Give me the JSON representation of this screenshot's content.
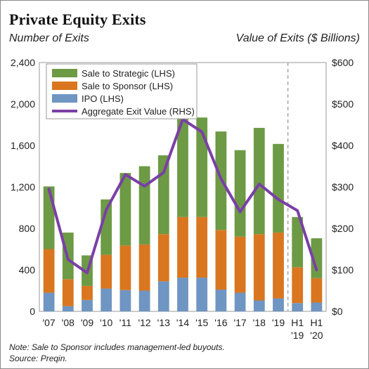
{
  "chart_data": {
    "type": "bar",
    "title": "Private Equity Exits",
    "ylabel_left": "Number of Exits",
    "ylabel_right": "Value of Exits ($ Billions)",
    "categories": [
      "'07",
      "'08",
      "'09",
      "'10",
      "'11",
      "'12",
      "'13",
      "'14",
      "'15",
      "'16",
      "'17",
      "'18",
      "'19",
      "H1\n'19",
      "H1\n'20"
    ],
    "stacked": true,
    "ylim_left": [
      0,
      2400
    ],
    "yticks_left": [
      "0",
      "400",
      "800",
      "1,200",
      "1,600",
      "2,000",
      "2,400"
    ],
    "ylim_right": [
      0,
      600
    ],
    "yticks_right": [
      "$0",
      "$100",
      "$200",
      "$300",
      "$400",
      "$500",
      "$600"
    ],
    "series": [
      {
        "name": "IPO (LHS)",
        "color": "#6f95c2",
        "axis": "left",
        "values": [
          180,
          50,
          110,
          220,
          205,
          200,
          290,
          325,
          325,
          210,
          180,
          105,
          125,
          80,
          85
        ]
      },
      {
        "name": "Sale to Sponsor (LHS)",
        "color": "#d9761f",
        "axis": "left",
        "values": [
          420,
          260,
          135,
          325,
          430,
          445,
          455,
          585,
          585,
          575,
          540,
          640,
          635,
          345,
          235
        ]
      },
      {
        "name": "Sale to Strategic (LHS)",
        "color": "#6d9a45",
        "axis": "left",
        "values": [
          605,
          450,
          295,
          535,
          700,
          755,
          760,
          960,
          960,
          950,
          835,
          1025,
          855,
          485,
          385
        ]
      }
    ],
    "line": {
      "name": "Aggregate Exit Value (RHS)",
      "color": "#7b3fa6",
      "axis": "right",
      "values": [
        295,
        125,
        93,
        245,
        330,
        302,
        335,
        463,
        433,
        320,
        240,
        307,
        270,
        243,
        100
      ]
    },
    "legend_order": [
      "Sale to Strategic (LHS)",
      "Sale to Sponsor (LHS)",
      "IPO (LHS)",
      "Aggregate Exit Value (RHS)"
    ],
    "legend_position": "top-left",
    "separator_before_index": 13
  },
  "notes": {
    "line1": "Note: Sale to Sponsor includes management-led buyouts.",
    "line2": "Source: Preqin."
  }
}
